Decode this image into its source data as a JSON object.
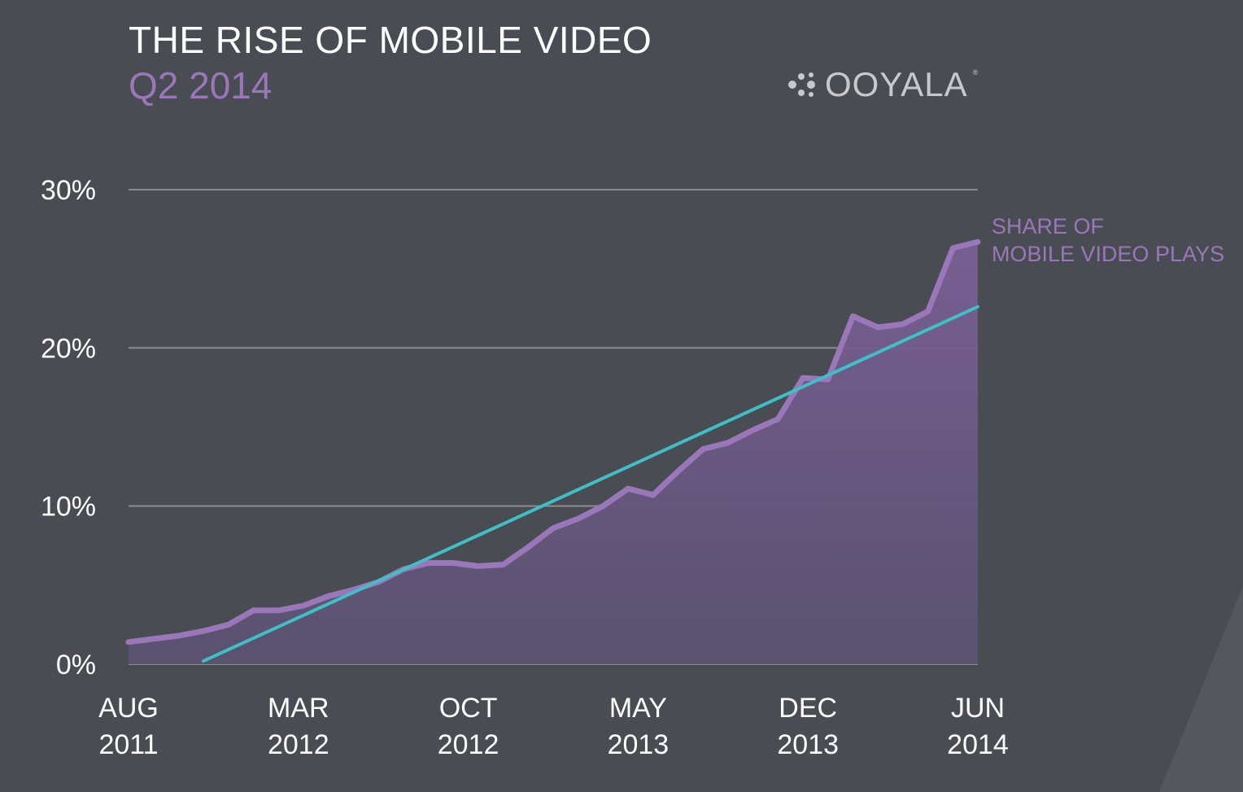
{
  "header": {
    "title": "THE RISE OF MOBILE VIDEO",
    "subtitle": "Q2 2014",
    "logo_text": "OOYALA",
    "logo_mark": "®"
  },
  "colors": {
    "background": "#4a4c53",
    "series": "#9a77b8",
    "trend": "#3fbfc6",
    "grid": "#8a8b8f",
    "text": "#ffffff",
    "logo": "#c9c9cc"
  },
  "chart_data": {
    "type": "area",
    "title": "THE RISE OF MOBILE VIDEO",
    "subtitle": "Q2 2014",
    "y_ticks": [
      "0%",
      "10%",
      "20%",
      "30%"
    ],
    "ylim": [
      0,
      30
    ],
    "x_ticks": [
      {
        "month": "AUG",
        "year": "2011"
      },
      {
        "month": "MAR",
        "year": "2012"
      },
      {
        "month": "OCT",
        "year": "2012"
      },
      {
        "month": "MAY",
        "year": "2013"
      },
      {
        "month": "DEC",
        "year": "2013"
      },
      {
        "month": "JUN",
        "year": "2014"
      }
    ],
    "x_range": [
      "2011-08",
      "2014-06"
    ],
    "grid": true,
    "series": [
      {
        "name": "SHARE OF MOBILE VIDEO PLAYS",
        "label_lines": [
          "SHARE OF",
          "MOBILE VIDEO PLAYS"
        ],
        "x": [
          "2011-08",
          "2011-09",
          "2011-10",
          "2011-11",
          "2011-12",
          "2012-01",
          "2012-02",
          "2012-03",
          "2012-04",
          "2012-05",
          "2012-06",
          "2012-07",
          "2012-08",
          "2012-09",
          "2012-10",
          "2012-11",
          "2012-12",
          "2013-01",
          "2013-02",
          "2013-03",
          "2013-04",
          "2013-05",
          "2013-06",
          "2013-07",
          "2013-08",
          "2013-09",
          "2013-10",
          "2013-11",
          "2013-12",
          "2014-01",
          "2014-02",
          "2014-03",
          "2014-04",
          "2014-05",
          "2014-06"
        ],
        "values": [
          1.4,
          1.6,
          1.8,
          2.1,
          2.5,
          3.4,
          3.4,
          3.7,
          4.3,
          4.7,
          5.2,
          6.0,
          6.4,
          6.4,
          6.2,
          6.3,
          7.4,
          8.6,
          9.2,
          10.0,
          11.1,
          10.7,
          12.2,
          13.6,
          14.0,
          14.8,
          15.5,
          18.1,
          18.0,
          22.0,
          21.3,
          21.5,
          22.3,
          26.3,
          26.7
        ]
      },
      {
        "name": "trend",
        "type": "line",
        "x": [
          "2011-11",
          "2014-06"
        ],
        "values": [
          0.2,
          22.6
        ]
      }
    ]
  }
}
